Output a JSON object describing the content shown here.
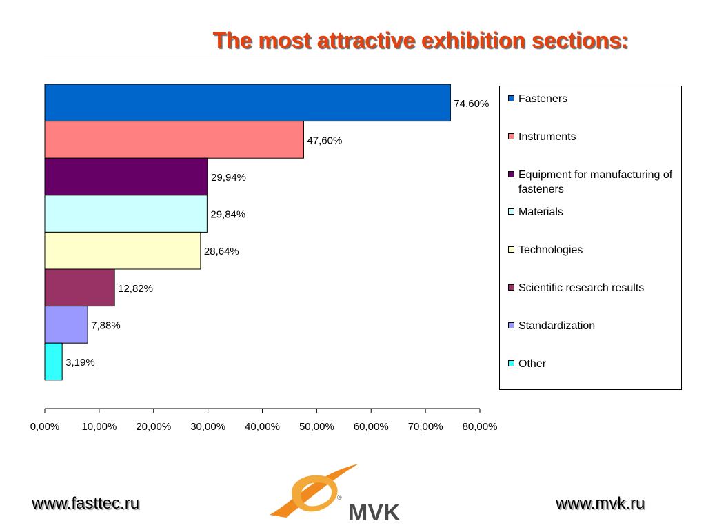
{
  "slide": {
    "title": "The most attractive exhibition sections:"
  },
  "chart_data": {
    "type": "bar",
    "orientation": "horizontal",
    "categories": [
      "Fasteners",
      "Instruments",
      "Equipment for manufacturing of fasteners",
      "Materials",
      "Technologies",
      "Scientific research results",
      "Standardization",
      "Other"
    ],
    "values": [
      74.6,
      47.6,
      29.94,
      29.84,
      28.64,
      12.82,
      7.88,
      3.19
    ],
    "data_labels": [
      "74,60%",
      "47,60%",
      "29,94%",
      "29,84%",
      "28,64%",
      "12,82%",
      "7,88%",
      "3,19%"
    ],
    "colors": [
      "#0066cc",
      "#ff8080",
      "#660066",
      "#ccffff",
      "#ffffcc",
      "#993366",
      "#9999ff",
      "#33ffff"
    ],
    "xlim": [
      0,
      80
    ],
    "x_ticks": [
      0,
      10,
      20,
      30,
      40,
      50,
      60,
      70,
      80
    ],
    "x_tick_labels": [
      "0,00%",
      "10,00%",
      "20,00%",
      "30,00%",
      "40,00%",
      "50,00%",
      "60,00%",
      "70,00%",
      "80,00%"
    ],
    "grid": false,
    "legend_position": "right"
  },
  "legend": {
    "items": [
      {
        "label": "Fasteners",
        "color": "#0066cc"
      },
      {
        "label": "Instruments",
        "color": "#ff8080"
      },
      {
        "label": "Equipment for manufacturing of fasteners",
        "color": "#660066"
      },
      {
        "label": "Materials",
        "color": "#ccffff"
      },
      {
        "label": "Technologies",
        "color": "#ffffcc"
      },
      {
        "label": "Scientific research results",
        "color": "#993366"
      },
      {
        "label": "Standardization",
        "color": "#9999ff"
      },
      {
        "label": "Other",
        "color": "#33ffff"
      }
    ]
  },
  "footer": {
    "left_link": "www.fasttec.ru",
    "right_link": "www.mvk.ru",
    "logo_text": "MVK",
    "logo_mark": "®",
    "logo_colors": {
      "orange": "#f08a1e",
      "gray": "#4a4a4a"
    }
  }
}
